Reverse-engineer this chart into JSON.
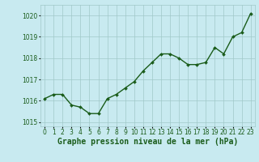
{
  "x": [
    0,
    1,
    2,
    3,
    4,
    5,
    6,
    7,
    8,
    9,
    10,
    11,
    12,
    13,
    14,
    15,
    16,
    17,
    18,
    19,
    20,
    21,
    22,
    23
  ],
  "y": [
    1016.1,
    1016.3,
    1016.3,
    1015.8,
    1015.7,
    1015.4,
    1015.4,
    1016.1,
    1016.3,
    1016.6,
    1016.9,
    1017.4,
    1017.8,
    1018.2,
    1018.2,
    1018.0,
    1017.7,
    1017.7,
    1017.8,
    1018.5,
    1018.2,
    1019.0,
    1019.2,
    1020.1
  ],
  "line_color": "#1a5c1a",
  "marker": "D",
  "marker_size": 2.0,
  "line_width": 1.0,
  "bg_color": "#c8eaf0",
  "grid_color": "#a0c8c8",
  "xlabel": "Graphe pression niveau de la mer (hPa)",
  "xlabel_fontsize": 7,
  "xlabel_color": "#1a5c1a",
  "tick_color": "#1a5c1a",
  "tick_fontsize": 5.5,
  "ylim": [
    1014.8,
    1020.5
  ],
  "xlim": [
    -0.5,
    23.5
  ],
  "yticks": [
    1015,
    1016,
    1017,
    1018,
    1019,
    1020
  ],
  "xticks": [
    0,
    1,
    2,
    3,
    4,
    5,
    6,
    7,
    8,
    9,
    10,
    11,
    12,
    13,
    14,
    15,
    16,
    17,
    18,
    19,
    20,
    21,
    22,
    23
  ]
}
